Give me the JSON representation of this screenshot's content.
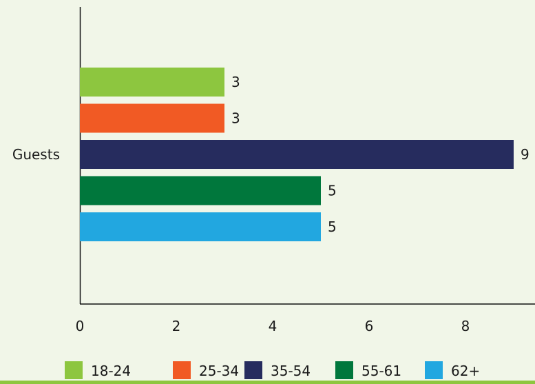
{
  "chart_data": {
    "type": "bar",
    "orientation": "horizontal",
    "categories": [
      "Guests"
    ],
    "series": [
      {
        "name": "18-24",
        "color": "#8dc63f",
        "values": [
          3
        ]
      },
      {
        "name": "25-34",
        "color": "#f15a24",
        "values": [
          3
        ]
      },
      {
        "name": "35-54",
        "color": "#262c5e",
        "values": [
          9
        ]
      },
      {
        "name": "55-61",
        "color": "#00773c",
        "values": [
          5
        ]
      },
      {
        "name": "62+",
        "color": "#22a7e0",
        "values": [
          5
        ]
      }
    ],
    "xlim": [
      0,
      9.5
    ],
    "xticks": [
      0,
      2,
      4,
      6,
      8
    ],
    "grid": false,
    "legend": "bottom",
    "data_labels": true
  },
  "colors": {
    "background": "#f1f6e8",
    "bottom_bar": "#8dc63f",
    "axis": "#111111"
  }
}
